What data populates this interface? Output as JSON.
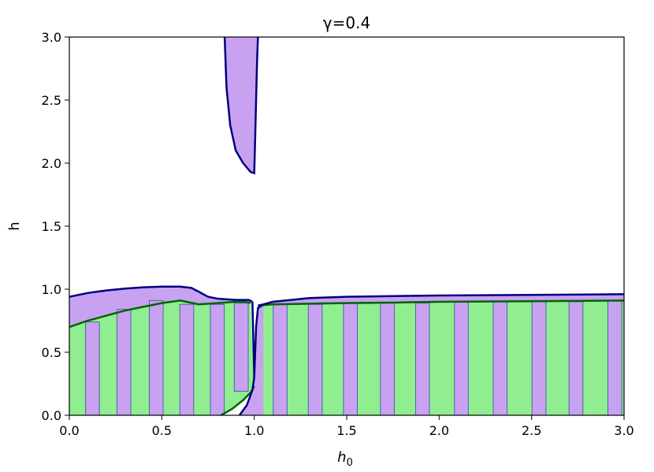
{
  "chart_data": {
    "type": "area",
    "title": "γ=0.4",
    "xlabel": "h",
    "xlabel_sub": "0",
    "ylabel": "h",
    "xlim": [
      0,
      3
    ],
    "ylim": [
      0,
      3
    ],
    "xticks": [
      "0.0",
      "0.5",
      "1.0",
      "1.5",
      "2.0",
      "2.5",
      "3.0"
    ],
    "yticks": [
      "0.0",
      "0.5",
      "1.0",
      "1.5",
      "2.0",
      "2.5",
      "3.0"
    ],
    "xtick_values": [
      0,
      0.5,
      1.0,
      1.5,
      2.0,
      2.5,
      3.0
    ],
    "ytick_values": [
      0,
      0.5,
      1.0,
      1.5,
      2.0,
      2.5,
      3.0
    ],
    "grid": false,
    "colors": {
      "green_fill": "#90ee90",
      "green_edge": "#006400",
      "purple_fill": "#c8a2f0",
      "purple_edge": "#000080",
      "bar_edge": "#4a63b0"
    },
    "green_region_left": {
      "x": [
        0.0,
        0.1,
        0.2,
        0.3,
        0.4,
        0.5,
        0.6,
        0.7,
        0.8,
        0.9,
        0.95,
        0.98
      ],
      "y": [
        0.7,
        0.75,
        0.79,
        0.83,
        0.86,
        0.89,
        0.91,
        0.88,
        0.89,
        0.9,
        0.9,
        0.89
      ]
    },
    "green_region_left_lower_cut": {
      "x": [
        0.82,
        0.88,
        0.94,
        0.98,
        1.0
      ],
      "y": [
        0.0,
        0.05,
        0.12,
        0.18,
        0.23
      ]
    },
    "green_region_right": {
      "x": [
        1.02,
        1.1,
        1.3,
        1.5,
        1.8,
        2.0,
        2.5,
        3.0
      ],
      "y": [
        0.87,
        0.88,
        0.885,
        0.89,
        0.895,
        0.9,
        0.905,
        0.91
      ]
    },
    "purple_band_upper_left": {
      "x": [
        0.0,
        0.1,
        0.2,
        0.3,
        0.4,
        0.5,
        0.6,
        0.66,
        0.7,
        0.75,
        0.8,
        0.9,
        0.97,
        0.99
      ],
      "y": [
        0.94,
        0.97,
        0.99,
        1.005,
        1.015,
        1.02,
        1.02,
        1.01,
        0.98,
        0.94,
        0.925,
        0.915,
        0.915,
        0.9
      ]
    },
    "purple_band_upper_right": {
      "x": [
        1.02,
        1.05,
        1.1,
        1.3,
        1.5,
        2.0,
        2.5,
        3.0
      ],
      "y": [
        0.87,
        0.88,
        0.9,
        0.93,
        0.94,
        0.95,
        0.955,
        0.96
      ]
    },
    "purple_lower_curve_left": {
      "x": [
        0.92,
        0.96,
        0.99,
        1.0
      ],
      "y": [
        0.0,
        0.08,
        0.2,
        0.3
      ]
    },
    "purple_lower_curve_right": {
      "x": [
        1.0,
        1.005,
        1.01,
        1.02,
        1.05
      ],
      "y": [
        0.3,
        0.5,
        0.7,
        0.85,
        0.88
      ]
    },
    "purple_spike": {
      "left_x": [
        0.84,
        0.85,
        0.87,
        0.9,
        0.94,
        0.98,
        1.0
      ],
      "left_y": [
        3.0,
        2.6,
        2.3,
        2.1,
        2.0,
        1.93,
        1.92
      ],
      "right_x": [
        1.0,
        1.005,
        1.01,
        1.015,
        1.02
      ],
      "right_y": [
        1.92,
        2.2,
        2.5,
        2.8,
        3.0
      ]
    },
    "bars": [
      {
        "x": 0.125,
        "y0": 0.0,
        "y1": 0.74
      },
      {
        "x": 0.295,
        "y0": 0.0,
        "y1": 0.84
      },
      {
        "x": 0.47,
        "y0": 0.0,
        "y1": 0.91
      },
      {
        "x": 0.635,
        "y0": 0.0,
        "y1": 0.88
      },
      {
        "x": 0.8,
        "y0": 0.0,
        "y1": 0.88
      },
      {
        "x": 0.93,
        "y0": 0.19,
        "y1": 0.89
      },
      {
        "x": 1.14,
        "y0": 0.0,
        "y1": 0.88
      },
      {
        "x": 1.33,
        "y0": 0.0,
        "y1": 0.88
      },
      {
        "x": 1.52,
        "y0": 0.0,
        "y1": 0.89
      },
      {
        "x": 1.72,
        "y0": 0.0,
        "y1": 0.89
      },
      {
        "x": 1.91,
        "y0": 0.0,
        "y1": 0.89
      },
      {
        "x": 2.12,
        "y0": 0.0,
        "y1": 0.9
      },
      {
        "x": 2.33,
        "y0": 0.0,
        "y1": 0.9
      },
      {
        "x": 2.54,
        "y0": 0.0,
        "y1": 0.91
      },
      {
        "x": 2.74,
        "y0": 0.0,
        "y1": 0.9
      },
      {
        "x": 2.95,
        "y0": 0.0,
        "y1": 0.91
      }
    ],
    "bar_width": 0.075
  }
}
